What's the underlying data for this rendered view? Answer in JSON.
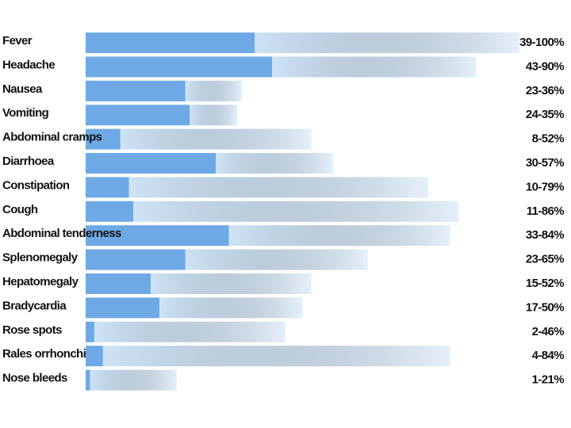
{
  "chart_data": {
    "type": "range-bar",
    "categories": [
      "Fever",
      "Headache",
      "Nausea",
      "Vomiting",
      "Abdominal cramps",
      "Diarrhoea",
      "Constipation",
      "Cough",
      "Abdominal tenderness",
      "Splenomegaly",
      "Hepatomegaly",
      "Bradycardia",
      "Rose spots",
      "Rales orrhonchi",
      "Nose bleeds"
    ],
    "low": [
      39,
      43,
      23,
      24,
      8,
      30,
      10,
      11,
      33,
      23,
      15,
      17,
      2,
      4,
      1
    ],
    "high": [
      100,
      90,
      36,
      35,
      52,
      57,
      79,
      86,
      84,
      65,
      52,
      50,
      46,
      84,
      21
    ],
    "value_labels": [
      "39-100%",
      "43-90%",
      "23-36%",
      "24-35%",
      "8-52%",
      "30-57%",
      "10-79%",
      "11-86%",
      "33-84%",
      "23-65%",
      "15-52%",
      "17-50%",
      "2-46%",
      "4-84%",
      "1-21%"
    ],
    "low_color": "#6ea9e6",
    "high_color": "#cfe3f6",
    "xlim": [
      0,
      100
    ]
  }
}
